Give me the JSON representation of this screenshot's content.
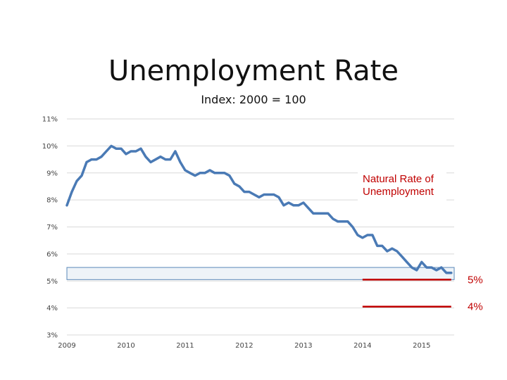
{
  "chart_data": {
    "type": "line",
    "title": "Unemployment Rate",
    "subtitle": "Index: 2000 = 100",
    "xlabel": "",
    "ylabel": "",
    "xlim": [
      2009.0,
      2015.55
    ],
    "ylim": [
      3,
      11
    ],
    "y_ticks": [
      "3%",
      "4%",
      "5%",
      "6%",
      "7%",
      "8%",
      "9%",
      "10%",
      "11%"
    ],
    "x_ticks": [
      "2009",
      "2010",
      "2011",
      "2012",
      "2013",
      "2014",
      "2015"
    ],
    "grid": true,
    "series": [
      {
        "color": "#4a7ab5",
        "x": [
          2009.0,
          2009.083,
          2009.167,
          2009.25,
          2009.333,
          2009.417,
          2009.5,
          2009.583,
          2009.667,
          2009.75,
          2009.833,
          2009.917,
          2010.0,
          2010.083,
          2010.167,
          2010.25,
          2010.333,
          2010.417,
          2010.5,
          2010.583,
          2010.667,
          2010.75,
          2010.833,
          2010.917,
          2011.0,
          2011.083,
          2011.167,
          2011.25,
          2011.333,
          2011.417,
          2011.5,
          2011.583,
          2011.667,
          2011.75,
          2011.833,
          2011.917,
          2012.0,
          2012.083,
          2012.167,
          2012.25,
          2012.333,
          2012.417,
          2012.5,
          2012.583,
          2012.667,
          2012.75,
          2012.833,
          2012.917,
          2013.0,
          2013.083,
          2013.167,
          2013.25,
          2013.333,
          2013.417,
          2013.5,
          2013.583,
          2013.667,
          2013.75,
          2013.833,
          2013.917,
          2014.0,
          2014.083,
          2014.167,
          2014.25,
          2014.333,
          2014.417,
          2014.5,
          2014.583,
          2014.667,
          2014.75,
          2014.833,
          2014.917,
          2015.0,
          2015.083,
          2015.167,
          2015.25,
          2015.333,
          2015.417,
          2015.5
        ],
        "y": [
          7.8,
          8.3,
          8.7,
          8.9,
          9.4,
          9.5,
          9.5,
          9.6,
          9.8,
          10.0,
          9.9,
          9.9,
          9.7,
          9.8,
          9.8,
          9.9,
          9.6,
          9.4,
          9.5,
          9.6,
          9.5,
          9.5,
          9.8,
          9.4,
          9.1,
          9.0,
          8.9,
          9.0,
          9.0,
          9.1,
          9.0,
          9.0,
          9.0,
          8.9,
          8.6,
          8.5,
          8.3,
          8.3,
          8.2,
          8.1,
          8.2,
          8.2,
          8.2,
          8.1,
          7.8,
          7.9,
          7.8,
          7.8,
          7.9,
          7.7,
          7.5,
          7.5,
          7.5,
          7.5,
          7.3,
          7.2,
          7.2,
          7.2,
          7.0,
          6.7,
          6.6,
          6.7,
          6.7,
          6.3,
          6.3,
          6.1,
          6.2,
          6.1,
          5.9,
          5.7,
          5.5,
          5.4,
          5.7,
          5.5,
          5.5,
          5.4,
          5.5,
          5.3,
          5.3
        ]
      }
    ],
    "annotation": {
      "text_line1": "Natural Rate of",
      "text_line2": "Unemployment",
      "color": "#c00000"
    },
    "reference_lines": [
      {
        "value": 5.05,
        "x_start": 2014.0,
        "x_end": 2015.5,
        "label": "5%",
        "color": "#c00000"
      },
      {
        "value": 4.05,
        "x_start": 2014.0,
        "x_end": 2015.5,
        "label": "4%",
        "color": "#c00000"
      }
    ],
    "highlight_band": {
      "y_low": 5.05,
      "y_high": 5.5,
      "x_start": 2009.0,
      "x_end": 2015.55,
      "fill": "#eef3f8",
      "stroke": "#5a88b8"
    }
  }
}
